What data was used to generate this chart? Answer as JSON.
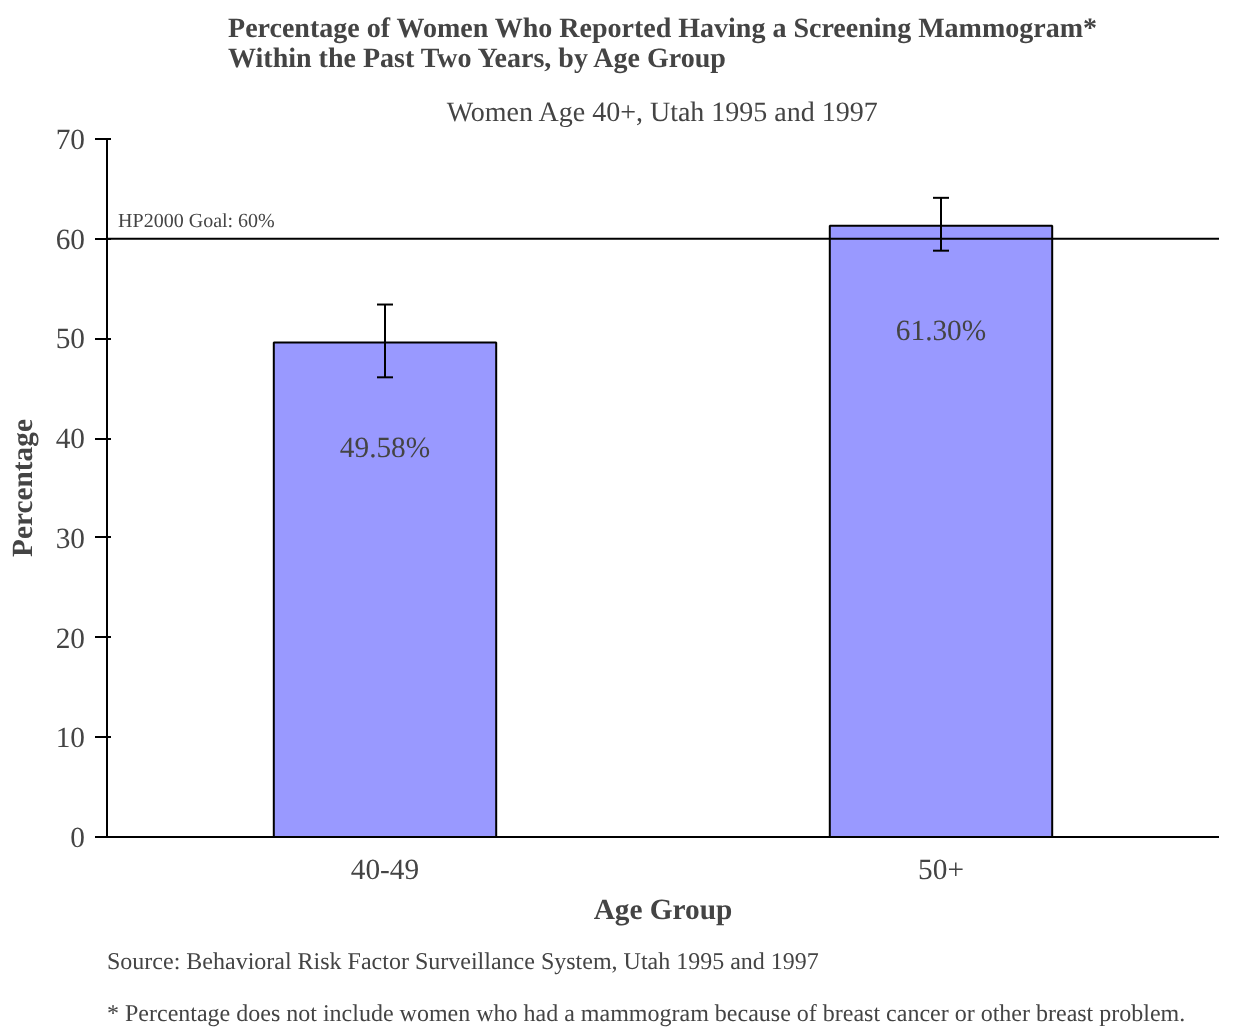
{
  "chart_data": {
    "type": "bar",
    "title": "Percentage of Women Who Reported Having a Screening Mammogram* Within the Past Two Years, by Age Group",
    "subtitle": "Women Age 40+, Utah 1995 and 1997",
    "xlabel": "Age Group",
    "ylabel": "Percentage",
    "categories": [
      "40-49",
      "50+"
    ],
    "values": [
      49.58,
      61.3
    ],
    "color": "#9999ff",
    "errors": [
      [
        46.1,
        53.4
      ],
      [
        58.8,
        64.1
      ]
    ],
    "value_labels": [
      "49.58%",
      "61.30%"
    ],
    "ylim": [
      0,
      70
    ],
    "yticks": [
      0,
      10,
      20,
      30,
      40,
      50,
      60,
      70
    ],
    "grid": false,
    "ref_lines": [
      {
        "axis": "y",
        "value": 60,
        "label": "HP2000 Goal: 60%",
        "color": "#000000"
      }
    ],
    "annotations": [
      "Source: Behavioral Risk Factor Surveillance System, Utah 1995 and 1997",
      "* Percentage does not include women who had a mammogram because of breast cancer or other breast problem."
    ]
  }
}
